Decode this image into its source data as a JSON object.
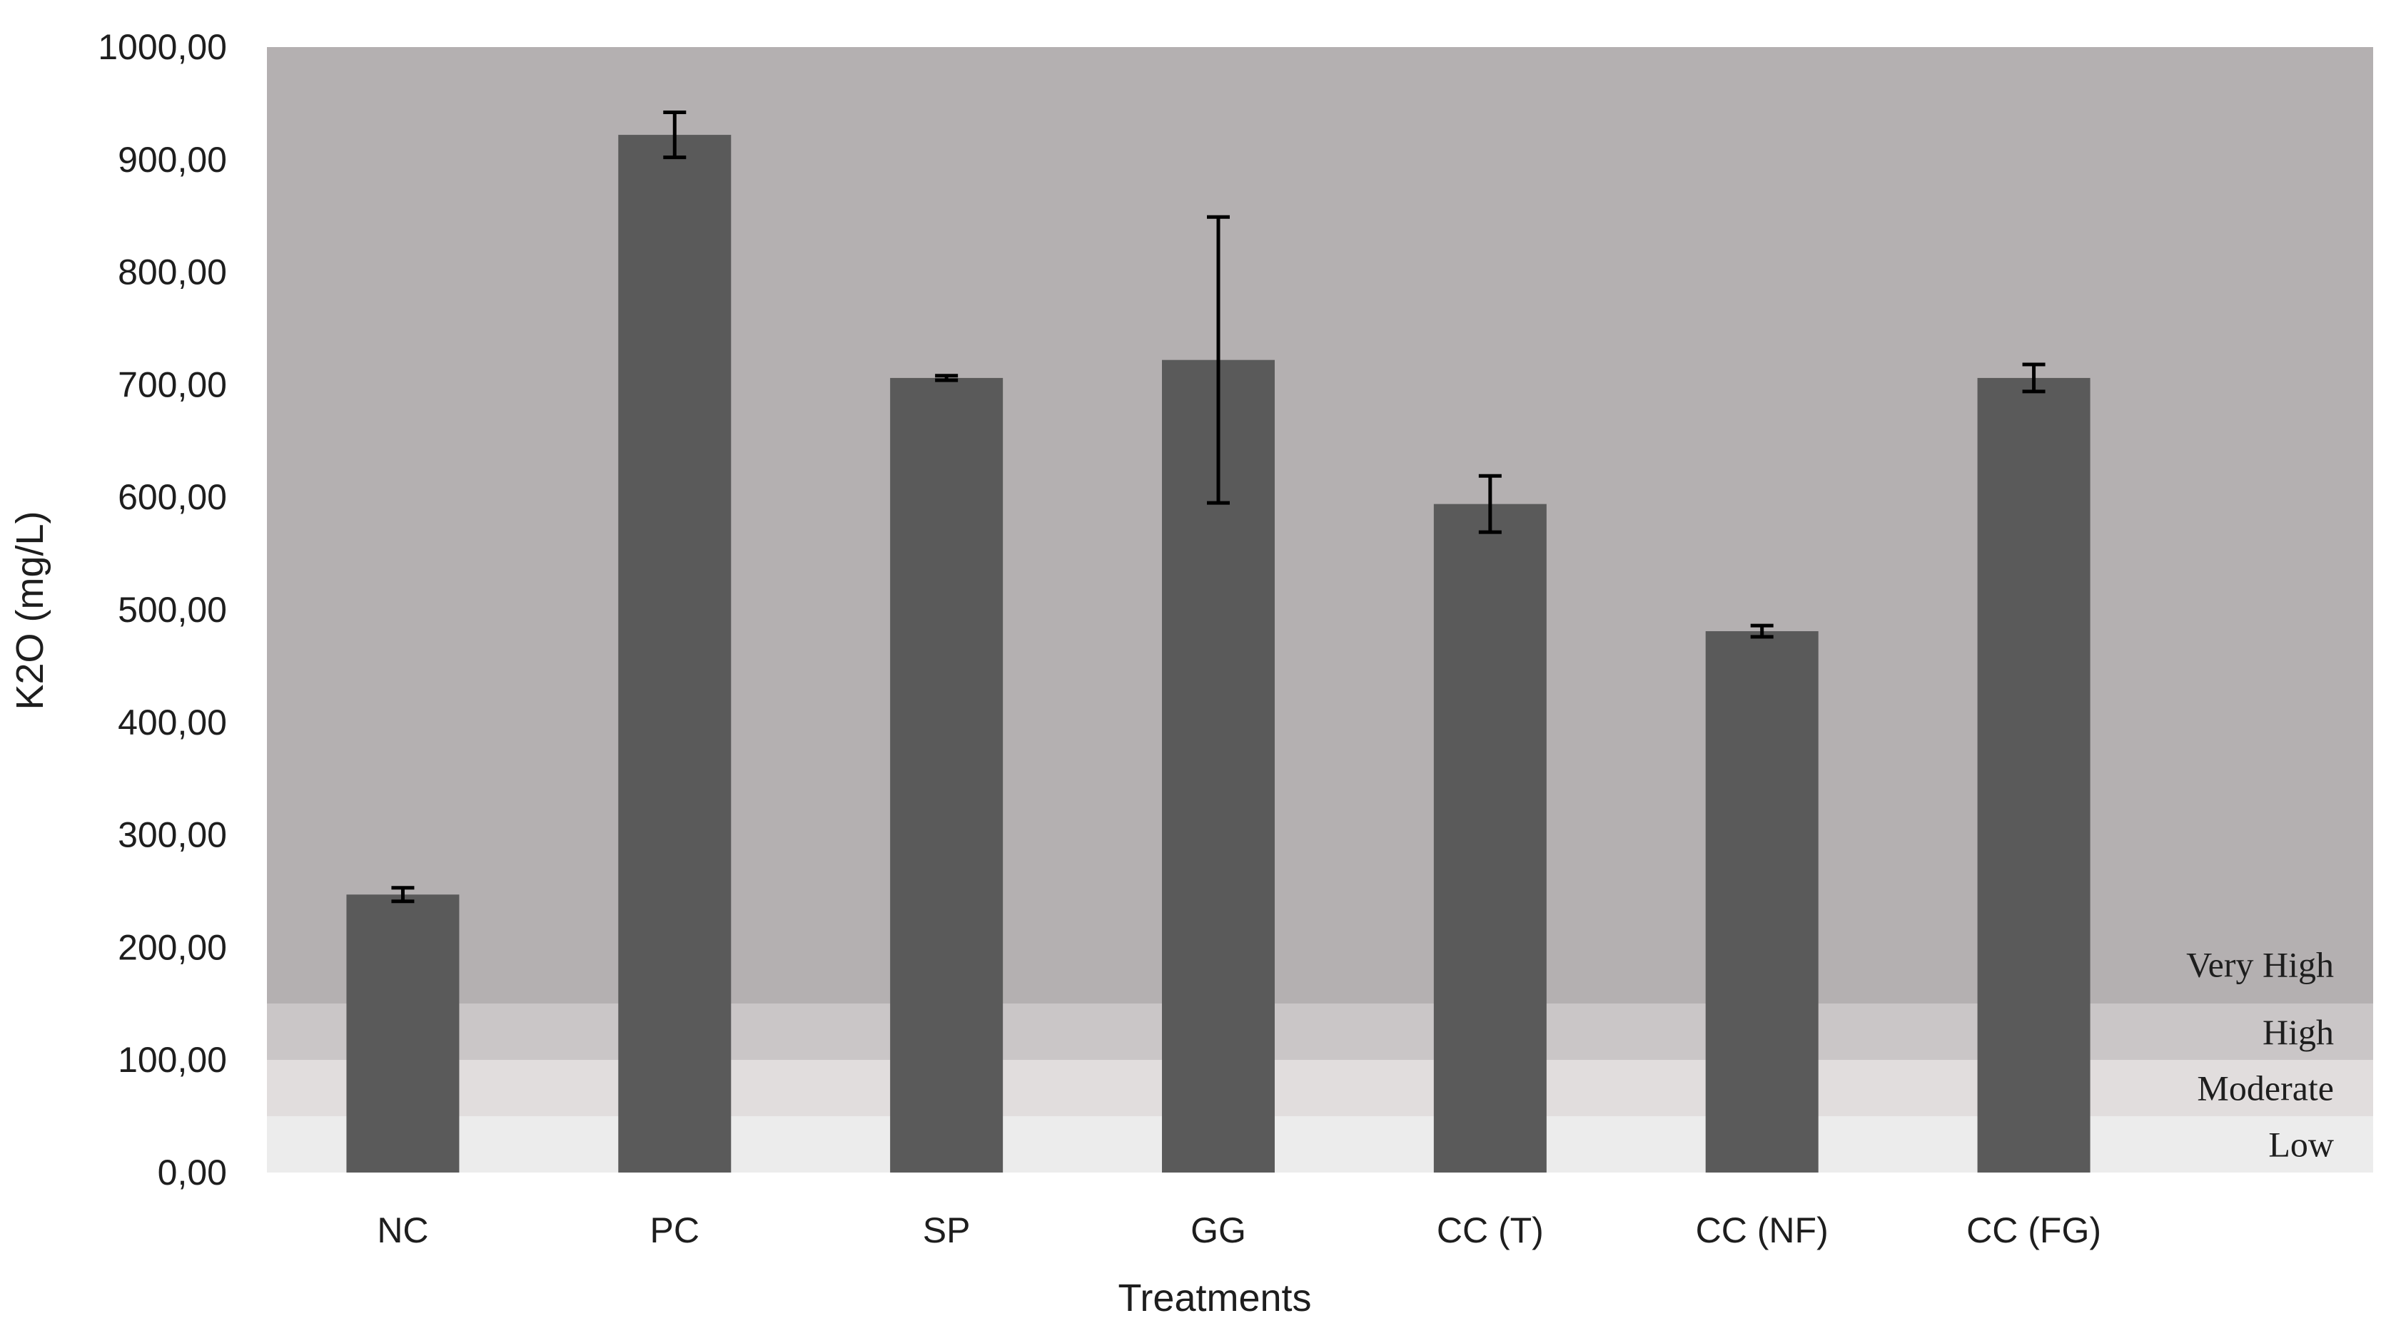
{
  "chart_data": {
    "type": "bar",
    "title": "",
    "xlabel": "Treatments",
    "ylabel": "K2O (mg/L)",
    "ylim": [
      0,
      1000
    ],
    "y_tick_step": 100,
    "y_tick_labels": [
      "0,00",
      "100,00",
      "200,00",
      "300,00",
      "400,00",
      "500,00",
      "600,00",
      "700,00",
      "800,00",
      "900,00",
      "1000,00"
    ],
    "categories": [
      "NC",
      "PC",
      "SP",
      "GG",
      "CC (T)",
      "CC (NF)",
      "CC (FG)"
    ],
    "values": [
      247,
      922,
      706,
      722,
      594,
      481,
      706
    ],
    "error_bars": [
      6,
      20,
      2,
      127,
      25,
      5,
      12
    ],
    "bar_color": "#5a5a5a",
    "error_bar_color": "#000000",
    "grid": false,
    "legend": "none",
    "zones": [
      {
        "label": "Low",
        "from": 0,
        "to": 50,
        "color": "#ececec"
      },
      {
        "label": "Moderate",
        "from": 50,
        "to": 100,
        "color": "#e1dddd"
      },
      {
        "label": "High",
        "from": 100,
        "to": 150,
        "color": "#cac6c7"
      },
      {
        "label": "Very High",
        "from": 150,
        "to": 1000,
        "color": "#b4b0b1"
      }
    ]
  }
}
